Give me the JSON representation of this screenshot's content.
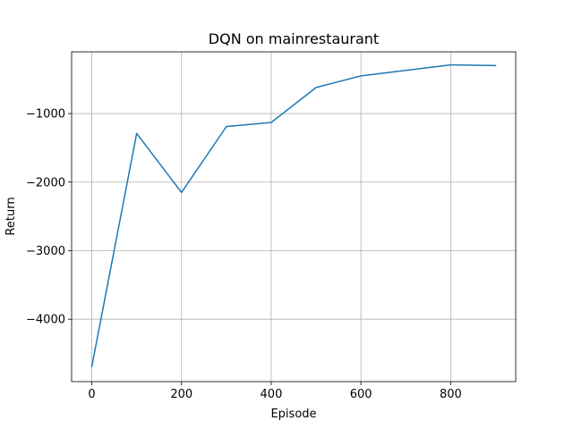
{
  "chart_data": {
    "type": "line",
    "title": "DQN on mainrestaurant",
    "xlabel": "Episode",
    "ylabel": "Return",
    "xlim": [
      -45,
      945
    ],
    "ylim": [
      -4910,
      -100
    ],
    "xticks": [
      0,
      200,
      400,
      600,
      800
    ],
    "xtick_labels": [
      "0",
      "200",
      "400",
      "600",
      "800"
    ],
    "yticks": [
      -4000,
      -3000,
      -2000,
      -1000
    ],
    "ytick_labels": [
      "−4000",
      "−3000",
      "−2000",
      "−1000"
    ],
    "grid": true,
    "series": [
      {
        "color": "#1f77b4",
        "x": [
          0,
          100,
          200,
          300,
          400,
          500,
          600,
          700,
          800,
          900
        ],
        "y": [
          -4690,
          -1290,
          -2150,
          -1190,
          -1130,
          -620,
          -450,
          -370,
          -290,
          -300
        ]
      }
    ]
  }
}
